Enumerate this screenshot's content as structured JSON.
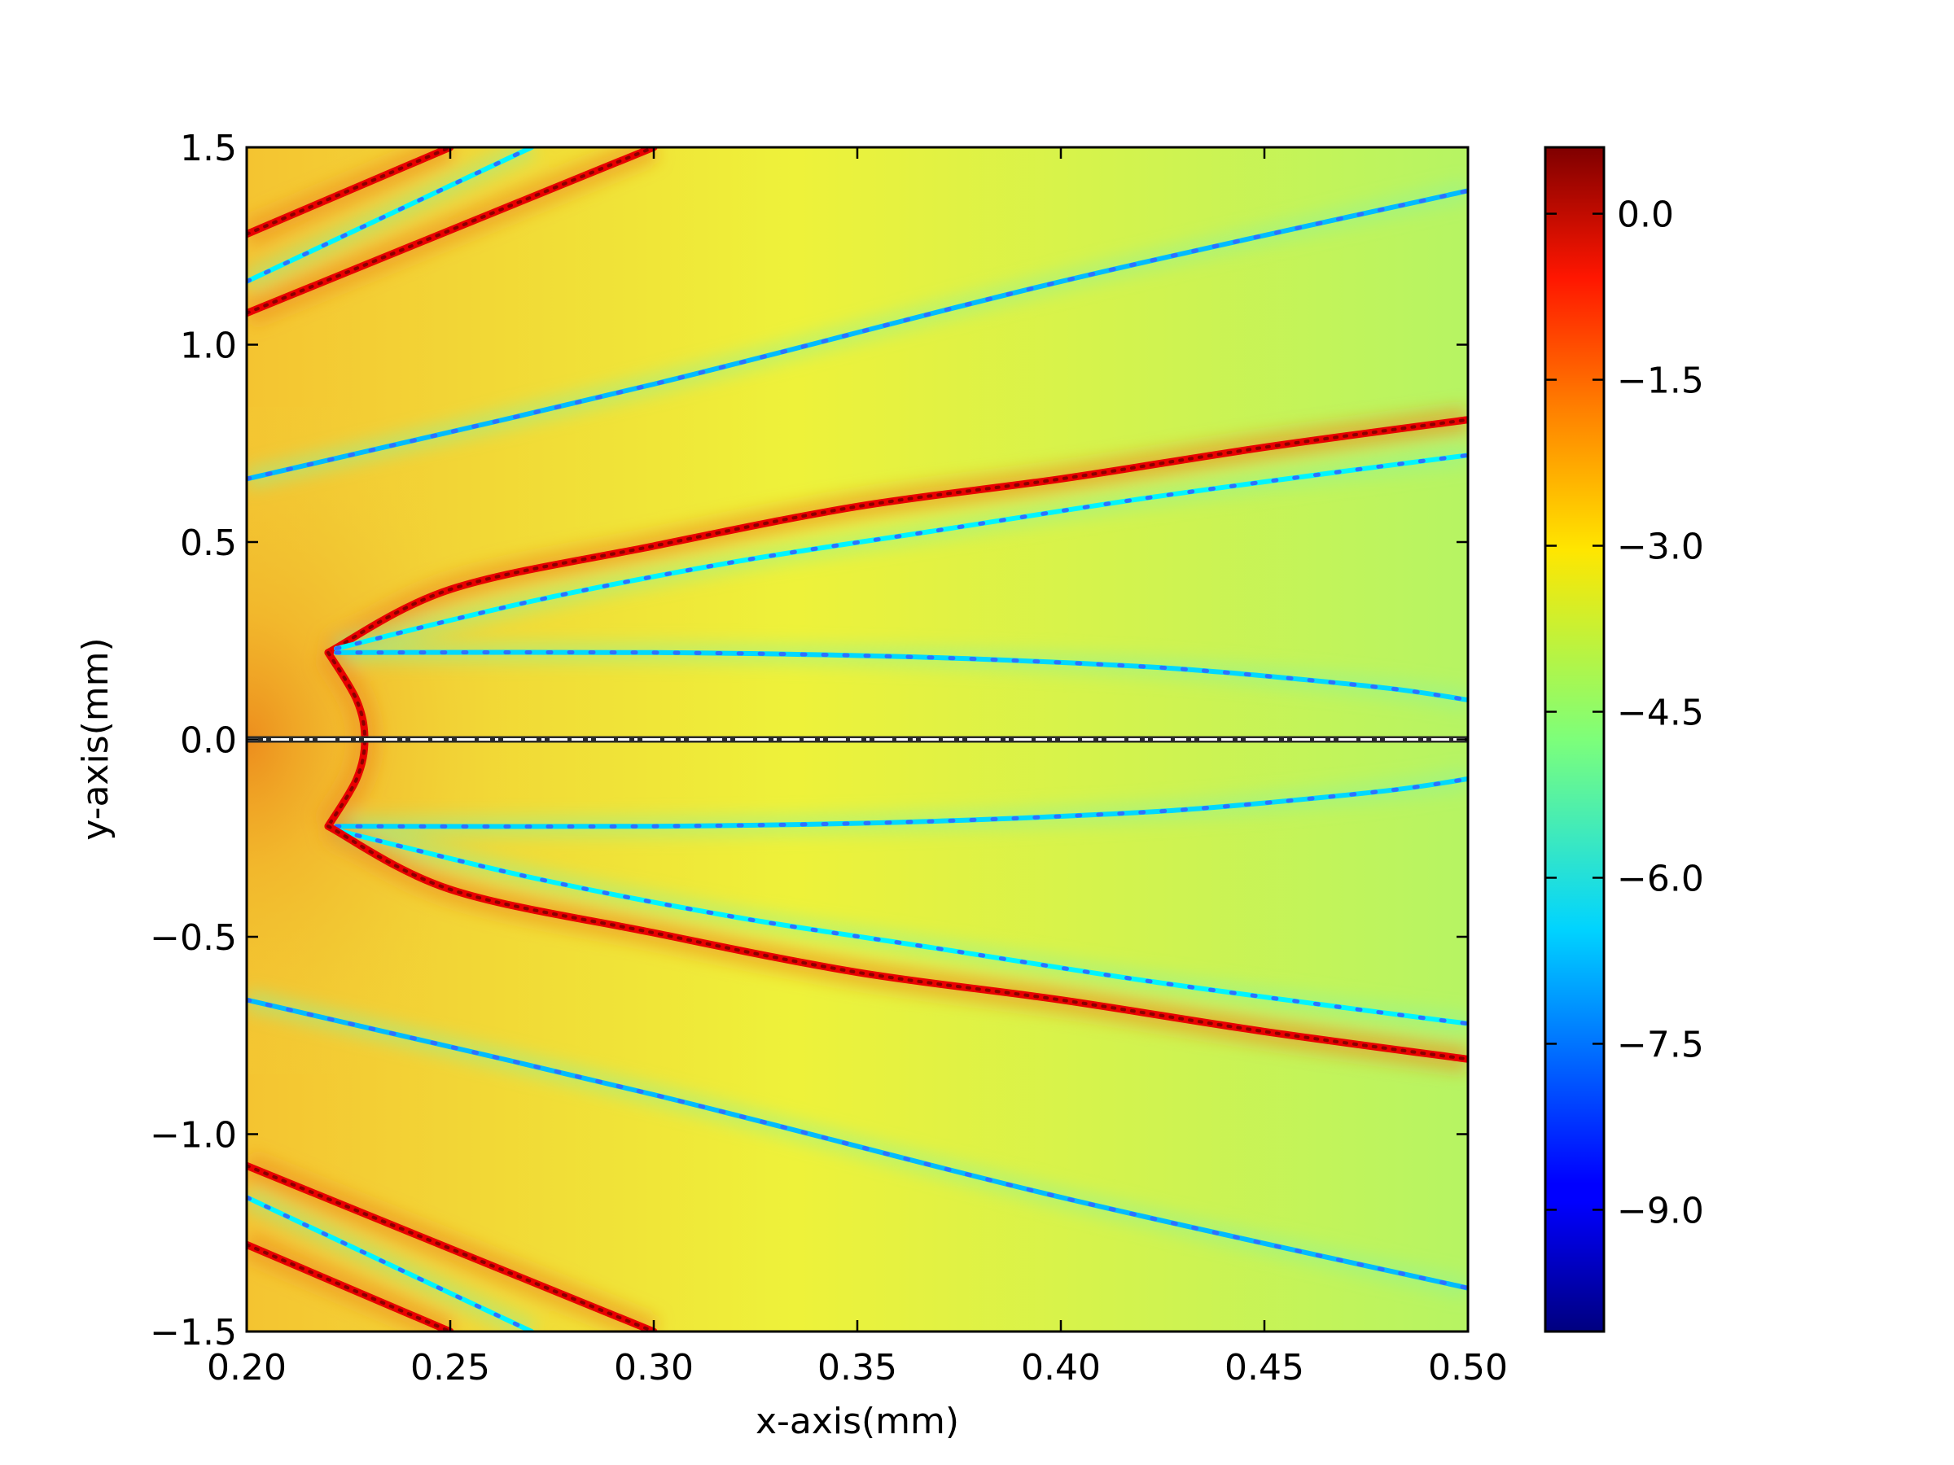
{
  "chart_data": {
    "type": "heatmap",
    "title": "",
    "xlabel": "x-axis(mm)",
    "ylabel": "y-axis(mm)",
    "xlim": [
      0.2,
      0.5
    ],
    "ylim": [
      -1.5,
      1.5
    ],
    "x_ticks": [
      "0.20",
      "0.25",
      "0.30",
      "0.35",
      "0.40",
      "0.45",
      "0.50"
    ],
    "y_ticks": [
      "1.5",
      "1.0",
      "0.5",
      "0.0",
      "−0.5",
      "−1.0",
      "−1.5"
    ],
    "x_tick_values": [
      0.2,
      0.25,
      0.3,
      0.35,
      0.4,
      0.45,
      0.5
    ],
    "y_tick_values": [
      1.5,
      1.0,
      0.5,
      0.0,
      -0.5,
      -1.0,
      -1.5
    ],
    "colorbar": {
      "colormap": "jet",
      "range": [
        -10.1,
        0.6
      ],
      "ticks": [
        "0.0",
        "−1.5",
        "−3.0",
        "−4.5",
        "−6.0",
        "−7.5",
        "−9.0"
      ],
      "tick_values": [
        0.0,
        -1.5,
        -3.0,
        -4.5,
        -6.0,
        -7.5,
        -9.0
      ]
    },
    "background_level": -3.4,
    "features": [
      {
        "kind": "ridge",
        "value": -0.5,
        "points": [
          [
            0.2,
            1.28
          ],
          [
            0.25,
            1.5
          ]
        ]
      },
      {
        "kind": "ridge",
        "value": -0.5,
        "points": [
          [
            0.2,
            1.08
          ],
          [
            0.3,
            1.5
          ]
        ]
      },
      {
        "kind": "trough",
        "value": -6.2,
        "points": [
          [
            0.2,
            1.16
          ],
          [
            0.27,
            1.5
          ]
        ]
      },
      {
        "kind": "trough",
        "value": -6.8,
        "points": [
          [
            0.2,
            0.66
          ],
          [
            0.3,
            0.9
          ],
          [
            0.4,
            1.16
          ],
          [
            0.5,
            1.39
          ]
        ]
      },
      {
        "kind": "ridge",
        "value": -0.5,
        "points": [
          [
            0.22,
            0.22
          ],
          [
            0.25,
            0.38
          ],
          [
            0.3,
            0.49
          ],
          [
            0.35,
            0.59
          ],
          [
            0.4,
            0.66
          ],
          [
            0.45,
            0.74
          ],
          [
            0.5,
            0.81
          ]
        ]
      },
      {
        "kind": "trough",
        "value": -6.2,
        "points": [
          [
            0.222,
            0.23
          ],
          [
            0.27,
            0.35
          ],
          [
            0.32,
            0.45
          ],
          [
            0.37,
            0.53
          ],
          [
            0.42,
            0.61
          ],
          [
            0.47,
            0.68
          ],
          [
            0.5,
            0.72
          ]
        ]
      },
      {
        "kind": "trough",
        "value": -6.5,
        "points": [
          [
            0.222,
            0.22
          ],
          [
            0.3,
            0.22
          ],
          [
            0.36,
            0.21
          ],
          [
            0.41,
            0.19
          ],
          [
            0.44,
            0.17
          ],
          [
            0.48,
            0.13
          ],
          [
            0.5,
            0.1
          ]
        ]
      },
      {
        "kind": "ridge",
        "value": -0.5,
        "points": [
          [
            0.22,
            0.22
          ],
          [
            0.227,
            0.1
          ],
          [
            0.229,
            0.0
          ],
          [
            0.227,
            -0.1
          ],
          [
            0.22,
            -0.22
          ]
        ]
      },
      {
        "kind": "trough",
        "value": -6.5,
        "points": [
          [
            0.222,
            -0.22
          ],
          [
            0.3,
            -0.22
          ],
          [
            0.36,
            -0.21
          ],
          [
            0.41,
            -0.19
          ],
          [
            0.44,
            -0.17
          ],
          [
            0.48,
            -0.13
          ],
          [
            0.5,
            -0.1
          ]
        ]
      },
      {
        "kind": "trough",
        "value": -6.2,
        "points": [
          [
            0.222,
            -0.23
          ],
          [
            0.27,
            -0.35
          ],
          [
            0.32,
            -0.45
          ],
          [
            0.37,
            -0.53
          ],
          [
            0.42,
            -0.61
          ],
          [
            0.47,
            -0.68
          ],
          [
            0.5,
            -0.72
          ]
        ]
      },
      {
        "kind": "ridge",
        "value": -0.5,
        "points": [
          [
            0.22,
            -0.22
          ],
          [
            0.25,
            -0.38
          ],
          [
            0.3,
            -0.49
          ],
          [
            0.35,
            -0.59
          ],
          [
            0.4,
            -0.66
          ],
          [
            0.45,
            -0.74
          ],
          [
            0.5,
            -0.81
          ]
        ]
      },
      {
        "kind": "trough",
        "value": -6.8,
        "points": [
          [
            0.2,
            -0.66
          ],
          [
            0.3,
            -0.9
          ],
          [
            0.4,
            -1.16
          ],
          [
            0.5,
            -1.39
          ]
        ]
      },
      {
        "kind": "ridge",
        "value": -0.5,
        "points": [
          [
            0.2,
            -1.08
          ],
          [
            0.3,
            -1.5
          ]
        ]
      },
      {
        "kind": "trough",
        "value": -6.2,
        "points": [
          [
            0.2,
            -1.16
          ],
          [
            0.27,
            -1.5
          ]
        ]
      },
      {
        "kind": "ridge",
        "value": -0.5,
        "points": [
          [
            0.2,
            -1.28
          ],
          [
            0.25,
            -1.5
          ]
        ]
      },
      {
        "kind": "singular-line",
        "value": 0.6,
        "points": [
          [
            0.2,
            0.0
          ],
          [
            0.5,
            0.0
          ]
        ]
      }
    ],
    "grid": false,
    "legend": "none"
  }
}
